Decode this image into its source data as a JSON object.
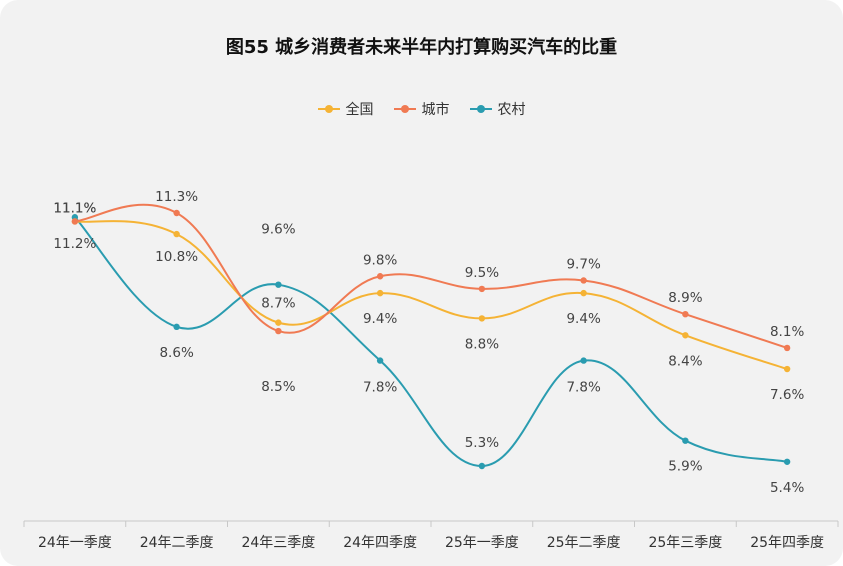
{
  "chart_data": {
    "type": "line",
    "title": "图55 城乡消费者未来半年内打算购买汽车的比重",
    "xlabel": "",
    "ylabel": "",
    "ylim": [
      4,
      12.5
    ],
    "grid": false,
    "legend_position": "top-center",
    "categories": [
      "24年一季度",
      "24年二季度",
      "24年三季度",
      "24年四季度",
      "25年一季度",
      "25年二季度",
      "25年三季度",
      "25年四季度"
    ],
    "series": [
      {
        "name": "全国",
        "color": "#f5b335",
        "values": [
          11.1,
          10.8,
          8.7,
          9.4,
          8.8,
          9.4,
          8.4,
          7.6
        ],
        "labels": [
          "11.1%",
          "10.8%",
          "8.7%",
          "9.4%",
          "8.8%",
          "9.4%",
          "8.4%",
          "7.6%"
        ]
      },
      {
        "name": "城市",
        "color": "#f07a53",
        "values": [
          11.1,
          11.3,
          8.5,
          9.8,
          9.5,
          9.7,
          8.9,
          8.1
        ],
        "labels": [
          "11.1%",
          "11.3%",
          "8.5%",
          "9.8%",
          "9.5%",
          "9.7%",
          "8.9%",
          "8.1%"
        ]
      },
      {
        "name": "农村",
        "color": "#2a9cb0",
        "values": [
          11.2,
          8.6,
          9.6,
          7.8,
          5.3,
          7.8,
          5.9,
          5.4
        ],
        "labels": [
          "11.2%",
          "8.6%",
          "9.6%",
          "7.8%",
          "5.3%",
          "7.8%",
          "5.9%",
          "5.4%"
        ]
      }
    ]
  }
}
